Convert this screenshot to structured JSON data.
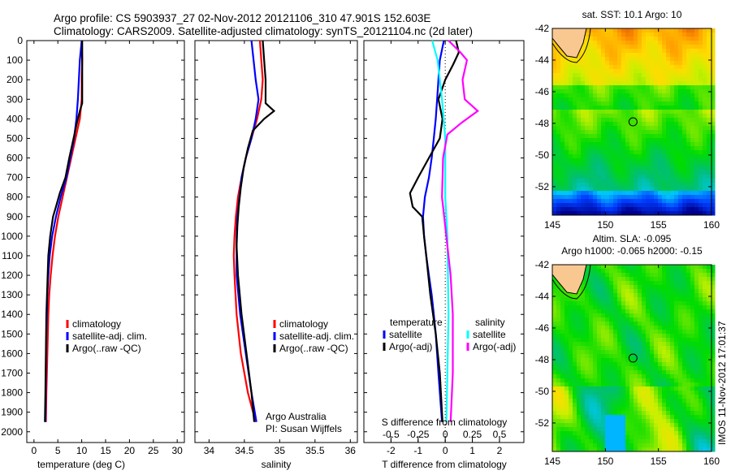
{
  "chart_data": [
    {
      "type": "line",
      "title": "Argo profile: CS 5903937_27 02-Nov-2012 20121106_310 47.901S 152.603E",
      "subtitle": "Climatology: CARS2009. Satellite-adjusted climatology: synTS_20121104.nc (2d later)",
      "xlabel": "temperature (deg C)",
      "xlim": [
        -1.5,
        31.5
      ],
      "xticks": [
        "0",
        "5",
        "10",
        "15",
        "20",
        "25",
        "30"
      ],
      "ylim": [
        0,
        2055
      ],
      "yticks": [
        "0",
        "100",
        "200",
        "300",
        "400",
        "500",
        "600",
        "700",
        "800",
        "900",
        "1000",
        "1100",
        "1200",
        "1300",
        "1400",
        "1500",
        "1600",
        "1700",
        "1800",
        "1900",
        "2000"
      ],
      "legend": [
        "climatology",
        "satellite-adj. clim.",
        "Argo(..raw -QC)"
      ],
      "series": [
        {
          "name": "climatology",
          "color": "#ff0000",
          "points": [
            [
              10,
              0
            ],
            [
              10.1,
              100
            ],
            [
              10,
              200
            ],
            [
              10,
              300
            ],
            [
              9.6,
              400
            ],
            [
              8.7,
              500
            ],
            [
              7.8,
              600
            ],
            [
              6.9,
              700
            ],
            [
              6.0,
              800
            ],
            [
              5.1,
              900
            ],
            [
              4.4,
              1000
            ],
            [
              3.9,
              1100
            ],
            [
              3.5,
              1200
            ],
            [
              3.2,
              1300
            ],
            [
              3.0,
              1400
            ],
            [
              2.9,
              1500
            ],
            [
              2.8,
              1600
            ],
            [
              2.7,
              1700
            ],
            [
              2.6,
              1800
            ],
            [
              2.5,
              1950
            ]
          ]
        },
        {
          "name": "satellite-adj. clim.",
          "color": "#0000ff",
          "points": [
            [
              10,
              0
            ],
            [
              9.6,
              100
            ],
            [
              9.4,
              200
            ],
            [
              9.2,
              300
            ],
            [
              8.9,
              400
            ],
            [
              8.4,
              500
            ],
            [
              7.6,
              600
            ],
            [
              6.8,
              700
            ],
            [
              5.6,
              800
            ],
            [
              4.6,
              900
            ],
            [
              3.8,
              1000
            ],
            [
              3.3,
              1100
            ],
            [
              3.0,
              1200
            ],
            [
              2.8,
              1300
            ],
            [
              2.7,
              1400
            ],
            [
              2.6,
              1500
            ],
            [
              2.5,
              1700
            ],
            [
              2.4,
              1950
            ]
          ]
        },
        {
          "name": "Argo(..raw -QC)",
          "color": "#000000",
          "points": [
            [
              10.1,
              0
            ],
            [
              10.1,
              100
            ],
            [
              10.1,
              200
            ],
            [
              10.1,
              320
            ],
            [
              9.6,
              360
            ],
            [
              9.0,
              420
            ],
            [
              8.3,
              500
            ],
            [
              7.4,
              600
            ],
            [
              6.6,
              700
            ],
            [
              5.4,
              780
            ],
            [
              4.6,
              850
            ],
            [
              4.0,
              900
            ],
            [
              3.4,
              1000
            ],
            [
              3.0,
              1100
            ],
            [
              2.8,
              1250
            ],
            [
              2.6,
              1400
            ],
            [
              2.5,
              1600
            ],
            [
              2.4,
              1800
            ],
            [
              2.3,
              1950
            ]
          ]
        }
      ]
    },
    {
      "type": "line",
      "xlabel": "salinity",
      "xlim": [
        33.8,
        36.1
      ],
      "xticks": [
        "34",
        "34.5",
        "35",
        "35.5",
        "36"
      ],
      "ylim": [
        0,
        2055
      ],
      "legend": [
        "climatology",
        "satellite-adj. clim.",
        "Argo(..raw -QC)"
      ],
      "annotation": [
        "Argo Australia",
        "PI: Susan Wijffels"
      ],
      "series": [
        {
          "name": "climatology",
          "color": "#ff0000",
          "points": [
            [
              34.72,
              0
            ],
            [
              34.74,
              100
            ],
            [
              34.76,
              200
            ],
            [
              34.74,
              300
            ],
            [
              34.68,
              400
            ],
            [
              34.6,
              500
            ],
            [
              34.52,
              600
            ],
            [
              34.46,
              700
            ],
            [
              34.41,
              800
            ],
            [
              34.38,
              900
            ],
            [
              34.36,
              1000
            ],
            [
              34.35,
              1100
            ],
            [
              34.36,
              1200
            ],
            [
              34.39,
              1400
            ],
            [
              34.45,
              1600
            ],
            [
              34.55,
              1800
            ],
            [
              34.66,
              1950
            ]
          ]
        },
        {
          "name": "satellite-adj. clim.",
          "color": "#0000ff",
          "points": [
            [
              34.6,
              0
            ],
            [
              34.63,
              100
            ],
            [
              34.66,
              200
            ],
            [
              34.7,
              300
            ],
            [
              34.66,
              400
            ],
            [
              34.6,
              500
            ],
            [
              34.52,
              600
            ],
            [
              34.46,
              700
            ],
            [
              34.43,
              800
            ],
            [
              34.4,
              900
            ],
            [
              34.39,
              1000
            ],
            [
              34.39,
              1200
            ],
            [
              34.44,
              1400
            ],
            [
              34.52,
              1600
            ],
            [
              34.6,
              1800
            ],
            [
              34.67,
              1950
            ]
          ]
        },
        {
          "name": "Argo(..raw -QC)",
          "color": "#000000",
          "points": [
            [
              34.76,
              0
            ],
            [
              34.78,
              100
            ],
            [
              34.8,
              200
            ],
            [
              34.8,
              320
            ],
            [
              34.92,
              360
            ],
            [
              34.78,
              400
            ],
            [
              34.62,
              460
            ],
            [
              34.55,
              550
            ],
            [
              34.49,
              650
            ],
            [
              34.45,
              750
            ],
            [
              34.42,
              850
            ],
            [
              34.4,
              950
            ],
            [
              34.39,
              1050
            ],
            [
              34.41,
              1200
            ],
            [
              34.46,
              1400
            ],
            [
              34.53,
              1600
            ],
            [
              34.6,
              1800
            ],
            [
              34.64,
              1950
            ]
          ]
        }
      ]
    },
    {
      "type": "line",
      "xlabel": "T difference from climatology",
      "xlim": [
        -3.0,
        2.9
      ],
      "xticks": [
        "-2",
        "-1",
        "0",
        "1",
        "2"
      ],
      "secondary_xlabel": "S difference from climatology",
      "secondary_xticks": [
        "-0.5",
        "-0.25",
        "0",
        "0.25",
        "0.5"
      ],
      "ylim": [
        0,
        2055
      ],
      "legend_titles": [
        "temperature",
        "salinity"
      ],
      "legend": [
        "satellite",
        "Argo(-adj)",
        "satellite",
        "Argo(-adj)"
      ],
      "series": [
        {
          "name": "temperature satellite",
          "color": "#0000ff",
          "axis": "T",
          "points": [
            [
              -0.05,
              0
            ],
            [
              -0.2,
              100
            ],
            [
              -0.25,
              200
            ],
            [
              -0.3,
              300
            ],
            [
              -0.35,
              400
            ],
            [
              -0.42,
              500
            ],
            [
              -0.5,
              600
            ],
            [
              -0.6,
              700
            ],
            [
              -0.75,
              800
            ],
            [
              -0.82,
              900
            ],
            [
              -0.78,
              1000
            ],
            [
              -0.7,
              1100
            ],
            [
              -0.6,
              1200
            ],
            [
              -0.5,
              1300
            ],
            [
              -0.42,
              1400
            ],
            [
              -0.35,
              1500
            ],
            [
              -0.25,
              1700
            ],
            [
              -0.12,
              1950
            ]
          ]
        },
        {
          "name": "temperature Argo(-adj)",
          "color": "#000000",
          "axis": "T",
          "points": [
            [
              0.4,
              0
            ],
            [
              0.5,
              60
            ],
            [
              0.3,
              120
            ],
            [
              0,
              200
            ],
            [
              -0.25,
              300
            ],
            [
              -0.1,
              400
            ],
            [
              -0.2,
              500
            ],
            [
              -0.6,
              600
            ],
            [
              -1.0,
              700
            ],
            [
              -1.3,
              780
            ],
            [
              -1.2,
              850
            ],
            [
              -0.85,
              900
            ],
            [
              -0.78,
              1000
            ],
            [
              -0.7,
              1100
            ],
            [
              -0.55,
              1300
            ],
            [
              -0.35,
              1500
            ],
            [
              -0.2,
              1700
            ],
            [
              -0.1,
              1950
            ]
          ]
        },
        {
          "name": "salinity satellite",
          "color": "#00ffff",
          "axis": "S",
          "points": [
            [
              -0.12,
              0
            ],
            [
              -0.07,
              100
            ],
            [
              -0.03,
              300
            ],
            [
              0,
              500
            ],
            [
              0.0,
              800
            ],
            [
              0.02,
              1000
            ],
            [
              0.03,
              1400
            ],
            [
              0.02,
              1700
            ],
            [
              0.01,
              1950
            ]
          ]
        },
        {
          "name": "salinity Argo(-adj)",
          "color": "#ff00ff",
          "axis": "S",
          "points": [
            [
              0.03,
              0
            ],
            [
              0.14,
              60
            ],
            [
              0.2,
              100
            ],
            [
              0.16,
              200
            ],
            [
              0.18,
              300
            ],
            [
              0.3,
              360
            ],
            [
              0.15,
              420
            ],
            [
              0.02,
              480
            ],
            [
              -0.02,
              600
            ],
            [
              -0.03,
              800
            ],
            [
              0.01,
              1000
            ],
            [
              0.05,
              1200
            ],
            [
              0.07,
              1400
            ],
            [
              0.07,
              1700
            ],
            [
              0.05,
              1950
            ]
          ]
        }
      ]
    },
    {
      "type": "heatmap",
      "title": "sat. SST: 10.1  Argo: 10",
      "xlim": [
        145,
        160
      ],
      "ylim": [
        -53.8,
        -42
      ],
      "xticks": [
        "145",
        "150",
        "155",
        "160"
      ],
      "yticks": [
        "-42",
        "-44",
        "-46",
        "-48",
        "-50",
        "-52"
      ],
      "marker": [
        152.603,
        -47.901
      ]
    },
    {
      "type": "heatmap",
      "title": "Altim. SLA: -0.095",
      "subtitle": "Argo h1000: -0.065 h2000: -0.15",
      "xlim": [
        145,
        160
      ],
      "ylim": [
        -53.8,
        -42
      ],
      "xticks": [
        "145",
        "150",
        "155",
        "160"
      ],
      "yticks": [
        "-42",
        "-44",
        "-46",
        "-48",
        "-50",
        "-52"
      ],
      "marker": [
        152.603,
        -47.901
      ]
    }
  ],
  "timestamp": "IMOS 11-Nov-2012 17:01:37"
}
